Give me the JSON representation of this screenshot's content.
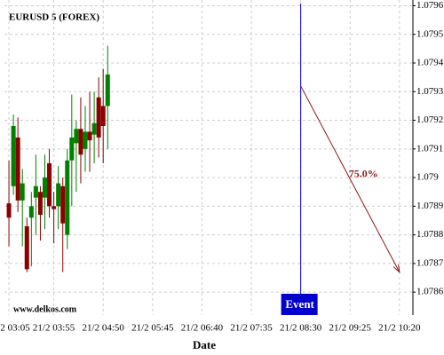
{
  "chart_data": {
    "type": "candlestick",
    "title": "EURUSD 5 (FOREX)",
    "xlabel": "Date",
    "watermark": "www.delkos.com",
    "x": [
      "21/2 03:05",
      "21/2 03:10",
      "21/2 03:15",
      "21/2 03:20",
      "21/2 03:25",
      "21/2 03:30",
      "21/2 03:35",
      "21/2 03:40",
      "21/2 03:45",
      "21/2 03:50",
      "21/2 03:55",
      "21/2 04:00",
      "21/2 04:05",
      "21/2 04:10",
      "21/2 04:15",
      "21/2 04:20",
      "21/2 04:25",
      "21/2 04:30",
      "21/2 04:35",
      "21/2 04:40",
      "21/2 04:45",
      "21/2 04:50",
      "21/2 04:55"
    ],
    "open": [
      1.07891,
      1.07897,
      1.07914,
      1.07892,
      1.07883,
      1.07886,
      1.07893,
      1.07895,
      1.07893,
      1.07905,
      1.0789,
      1.0789,
      1.07897,
      1.0788,
      1.07906,
      1.07912,
      1.07917,
      1.0791,
      1.07916,
      1.07915,
      1.07928,
      1.07925,
      1.07925
    ],
    "high": [
      1.07906,
      1.07922,
      1.07921,
      1.07903,
      1.07886,
      1.07895,
      1.07908,
      1.07897,
      1.07908,
      1.0791,
      1.07895,
      1.07904,
      1.079,
      1.0791,
      1.07929,
      1.0792,
      1.07928,
      1.07925,
      1.0793,
      1.0793,
      1.07935,
      1.07938,
      1.07946
    ],
    "low": [
      1.07876,
      1.07894,
      1.07888,
      1.07876,
      1.07867,
      1.07869,
      1.0788,
      1.07878,
      1.07882,
      1.07886,
      1.07877,
      1.07882,
      1.07867,
      1.07875,
      1.0789,
      1.07895,
      1.07898,
      1.07902,
      1.07902,
      1.07905,
      1.07907,
      1.07905,
      1.0791
    ],
    "close": [
      1.07886,
      1.07918,
      1.07892,
      1.07898,
      1.07868,
      1.0789,
      1.07897,
      1.07887,
      1.079,
      1.0789,
      1.07889,
      1.07898,
      1.07884,
      1.07906,
      1.07914,
      1.07917,
      1.07908,
      1.07916,
      1.07913,
      1.07919,
      1.07914,
      1.07918,
      1.07936
    ],
    "up_color": "#008000",
    "down_color": "#8b0000",
    "xlim": [
      "21/2 03:00",
      "21/2 10:35"
    ],
    "xticks": [
      "21/2 03:05",
      "21/2 03:55",
      "21/2 04:50",
      "21/2 05:45",
      "21/2 06:40",
      "21/2 07:35",
      "21/2 08:30",
      "21/2 09:25",
      "21/2 10:20"
    ],
    "ylim": [
      1.07852,
      1.07962
    ],
    "yticks": [
      1.0786,
      1.0787,
      1.0788,
      1.0789,
      1.079,
      1.0791,
      1.0792,
      1.0793,
      1.0794,
      1.0795,
      1.0796
    ],
    "grid": true,
    "event": {
      "x": "21/2 08:30",
      "label": "Event",
      "color": "#0000cc"
    },
    "projection": {
      "x": [
        "21/2 08:30",
        "21/2 10:20"
      ],
      "y": [
        1.07932,
        1.07867
      ],
      "label": "75.0%",
      "color": "#8b1a1a"
    }
  }
}
